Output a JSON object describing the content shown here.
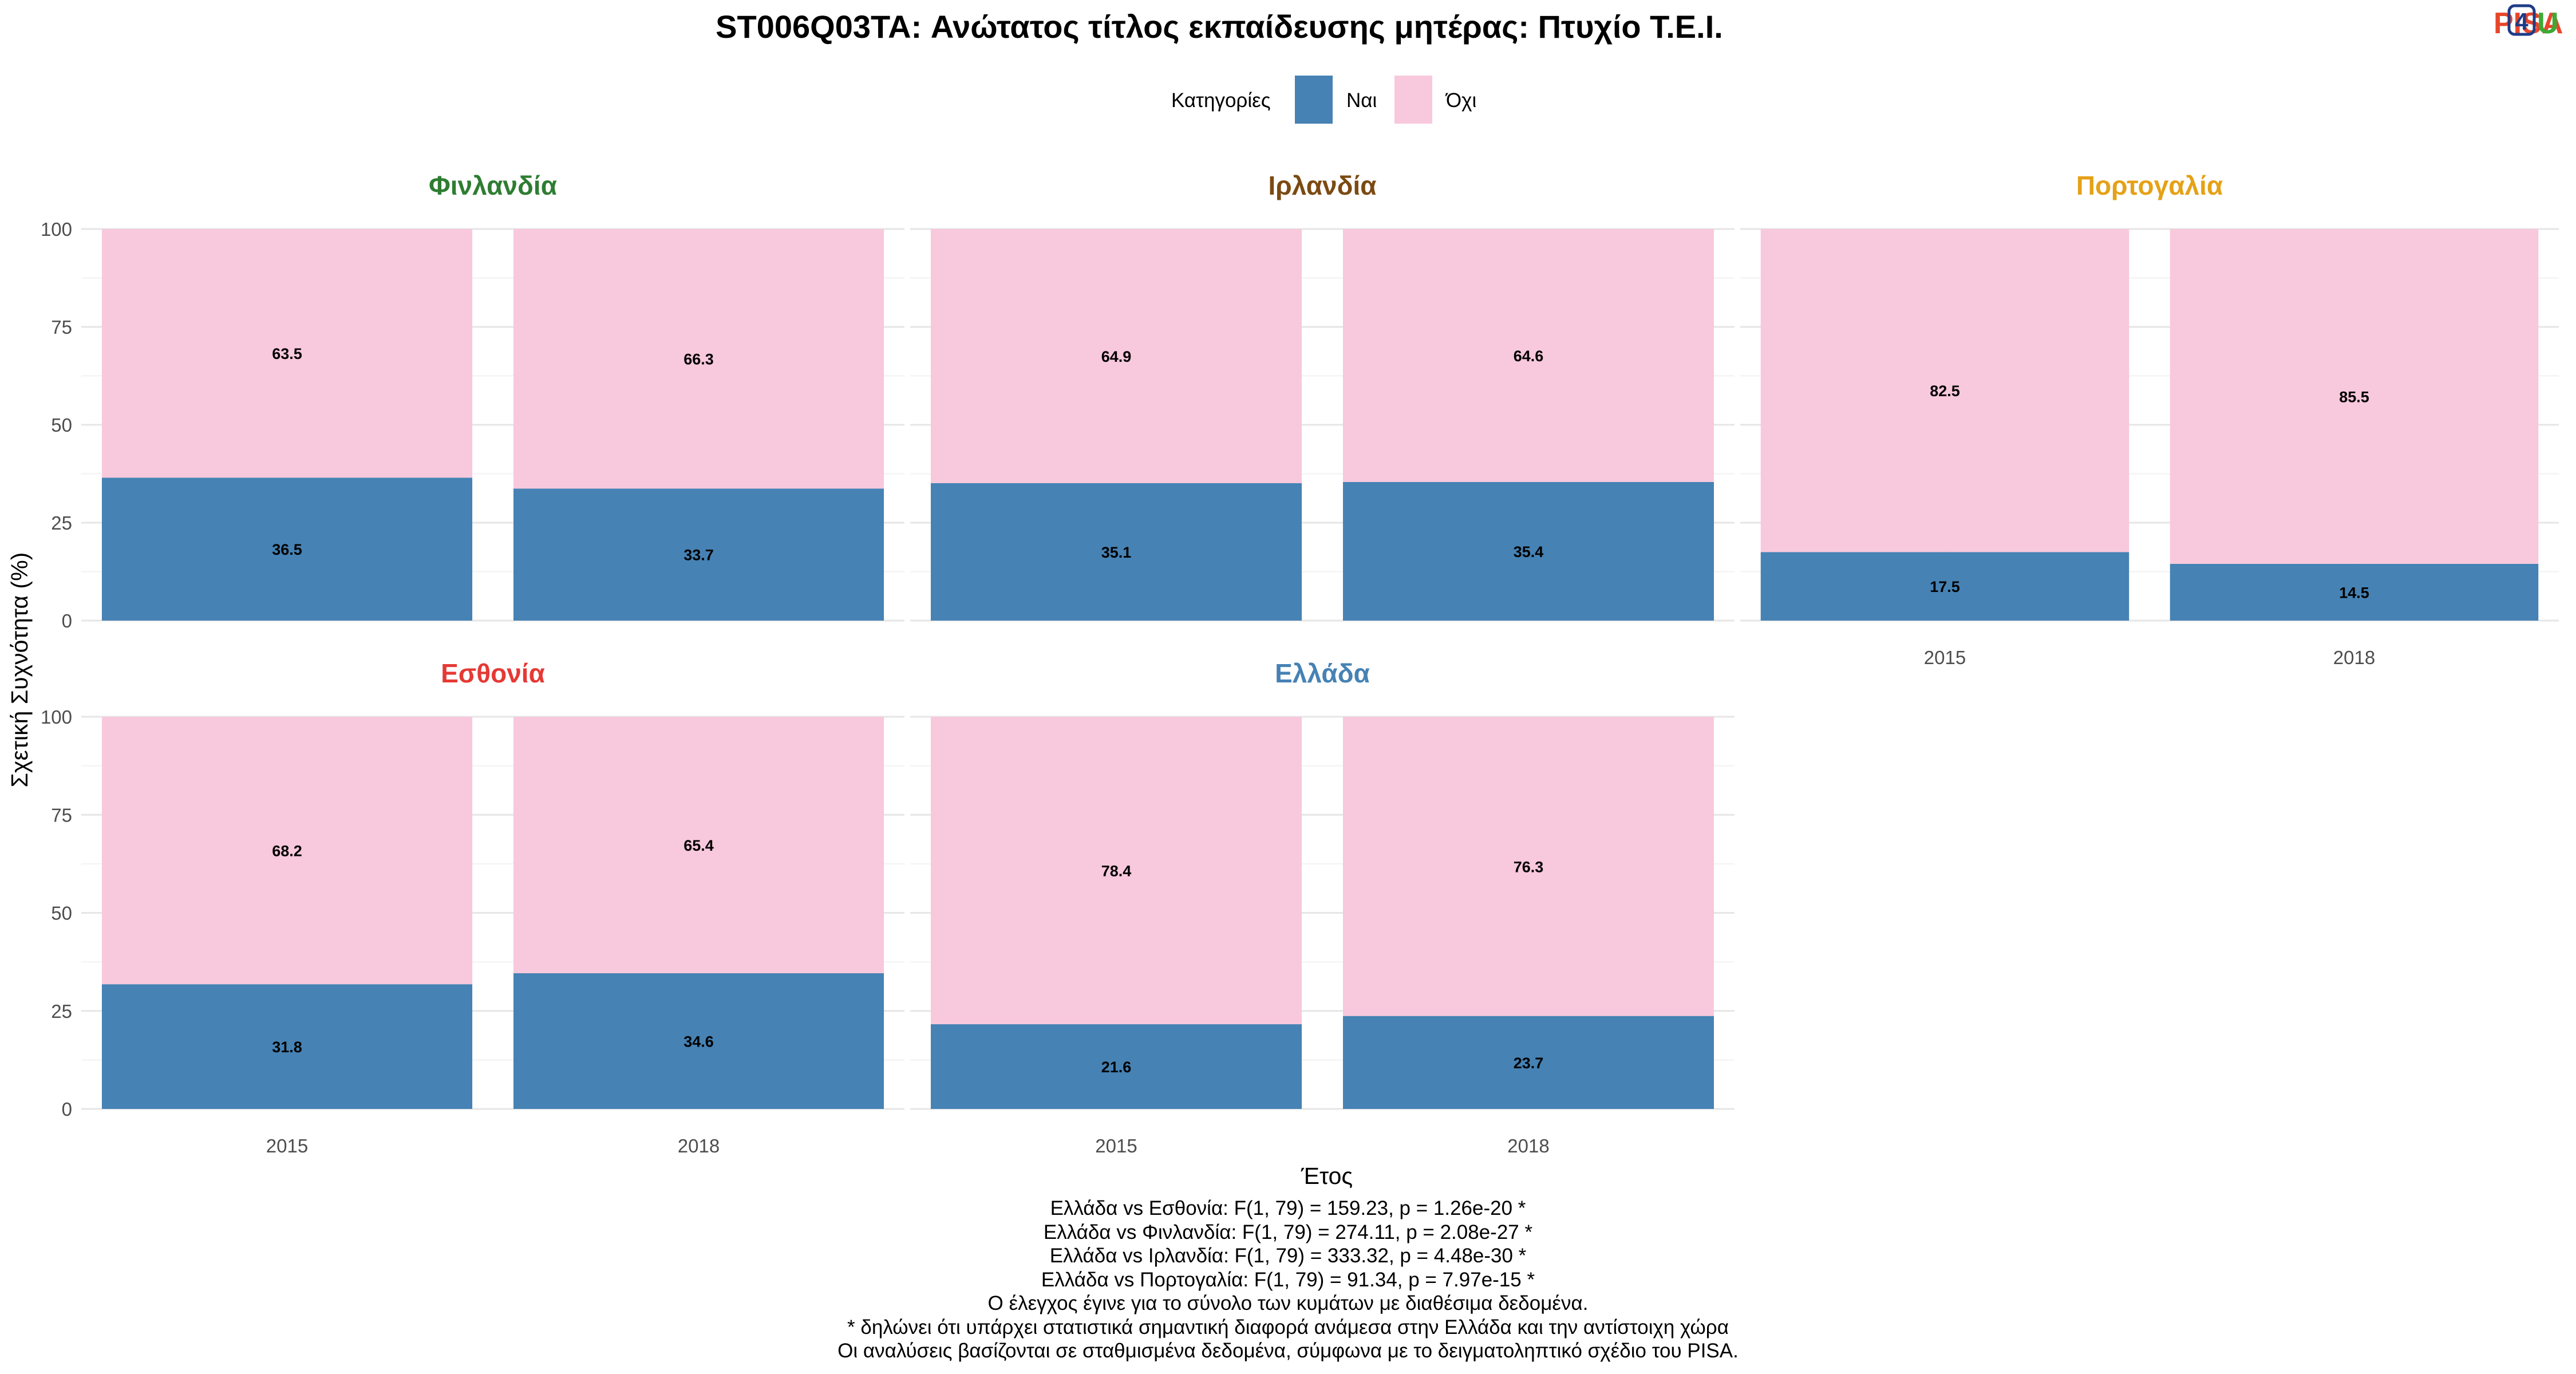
{
  "chart_data": {
    "type": "bar",
    "stacked": true,
    "title": "ST006Q03TA: Ανώτατος τίτλος εκπαίδευσης μητέρας: Πτυχίο Τ.Ε.Ι.",
    "xlabel": "Έτος",
    "ylabel": "Σχετική Συχνότητα (%)",
    "ylim": [
      0,
      100
    ],
    "yticks": [
      "0",
      "25",
      "50",
      "75",
      "100"
    ],
    "grid": true,
    "legend": {
      "title": "Κατηγορίες",
      "position": "top",
      "entries": [
        {
          "label": "Ναι",
          "color": "#4682B4"
        },
        {
          "label": "Όχι",
          "color": "#F8C8DC"
        }
      ]
    },
    "categories": [
      "2015",
      "2018"
    ],
    "facets": [
      {
        "name": "Φινλανδία",
        "title_color": "#2E7D32",
        "series": [
          {
            "name": "Ναι",
            "values": [
              36.5,
              33.7
            ]
          },
          {
            "name": "Όχι",
            "values": [
              63.5,
              66.3
            ]
          }
        ]
      },
      {
        "name": "Ιρλανδία",
        "title_color": "#7B4A12",
        "series": [
          {
            "name": "Ναι",
            "values": [
              35.1,
              35.4
            ]
          },
          {
            "name": "Όχι",
            "values": [
              64.9,
              64.6
            ]
          }
        ]
      },
      {
        "name": "Πορτογαλία",
        "title_color": "#E5A117",
        "series": [
          {
            "name": "Ναι",
            "values": [
              17.5,
              14.5
            ]
          },
          {
            "name": "Όχι",
            "values": [
              82.5,
              85.5
            ]
          }
        ]
      },
      {
        "name": "Εσθονία",
        "title_color": "#E53935",
        "series": [
          {
            "name": "Ναι",
            "values": [
              31.8,
              34.6
            ]
          },
          {
            "name": "Όχι",
            "values": [
              68.2,
              65.4
            ]
          }
        ]
      },
      {
        "name": "Ελλάδα",
        "title_color": "#4682B4",
        "series": [
          {
            "name": "Ναι",
            "values": [
              21.6,
              23.7
            ]
          },
          {
            "name": "Όχι",
            "values": [
              78.4,
              76.3
            ]
          }
        ]
      }
    ]
  },
  "logo": {
    "text_left": "PISA",
    "text_digit": "4",
    "text_right": "U",
    "color_left": "#E8462A",
    "color_digit": "#1F3C88",
    "color_right": "#3BAA35"
  },
  "footnotes": [
    "Ελλάδα vs Εσθονία: F(1, 79) = 159.23, p = 1.26e-20 *",
    "Ελλάδα vs Φινλανδία: F(1, 79) = 274.11, p = 2.08e-27 *",
    "Ελλάδα vs Ιρλανδία: F(1, 79) = 333.32, p = 4.48e-30 *",
    "Ελλάδα vs Πορτογαλία: F(1, 79) = 91.34, p = 7.97e-15 *",
    "Ο έλεγχος έγινε για το σύνολο των κυμάτων με διαθέσιμα δεδομένα.",
    "* δηλώνει ότι υπάρχει στατιστικά σημαντική διαφορά ανάμεσα στην Ελλάδα και την αντίστοιχη χώρα",
    "Οι αναλύσεις βασίζονται σε σταθμισμένα δεδομένα, σύμφωνα με το δειγματοληπτικό σχέδιο του PISA."
  ]
}
